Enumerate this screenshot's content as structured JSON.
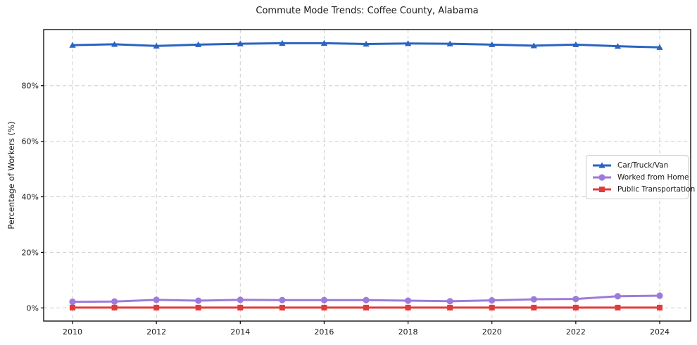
{
  "chart_data": {
    "type": "line",
    "title": "Commute Mode Trends: Coffee County, Alabama",
    "xlabel": "",
    "ylabel": "Percentage of Workers (%)",
    "x": [
      2010,
      2011,
      2012,
      2013,
      2014,
      2015,
      2016,
      2017,
      2018,
      2019,
      2020,
      2021,
      2022,
      2023,
      2024
    ],
    "x_ticks": [
      2010,
      2012,
      2014,
      2016,
      2018,
      2020,
      2022,
      2024
    ],
    "x_tick_labels": [
      "2010",
      "2012",
      "2014",
      "2016",
      "2018",
      "2020",
      "2022",
      "2024"
    ],
    "y_ticks": [
      0,
      20,
      40,
      60,
      80
    ],
    "y_tick_labels": [
      "0%",
      "20%",
      "40%",
      "60%",
      "80%"
    ],
    "xlim": [
      2009.3,
      2024.7
    ],
    "ylim": [
      -4.7,
      100.2
    ],
    "grid": true,
    "grid_style": "dashed",
    "legend_position": "center-right",
    "series": [
      {
        "name": "Car/Truck/Van",
        "color": "#2a63c2",
        "marker": "triangle",
        "values": [
          94.6,
          94.9,
          94.3,
          94.8,
          95.1,
          95.3,
          95.3,
          95.0,
          95.2,
          95.1,
          94.8,
          94.4,
          94.8,
          94.2,
          93.8
        ]
      },
      {
        "name": "Worked from Home",
        "color": "#9d7bdb",
        "marker": "circle",
        "values": [
          2.2,
          2.3,
          2.9,
          2.6,
          2.9,
          2.8,
          2.8,
          2.8,
          2.6,
          2.4,
          2.7,
          3.1,
          3.2,
          4.2,
          4.4
        ]
      },
      {
        "name": "Public Transportation",
        "color": "#e23b3b",
        "marker": "square",
        "values": [
          0.1,
          0.1,
          0.1,
          0.1,
          0.1,
          0.1,
          0.1,
          0.1,
          0.1,
          0.1,
          0.1,
          0.1,
          0.1,
          0.1,
          0.1
        ]
      }
    ],
    "colors": {
      "grid": "#cdcdcd",
      "spine": "#000000",
      "background": "#ffffff"
    }
  }
}
